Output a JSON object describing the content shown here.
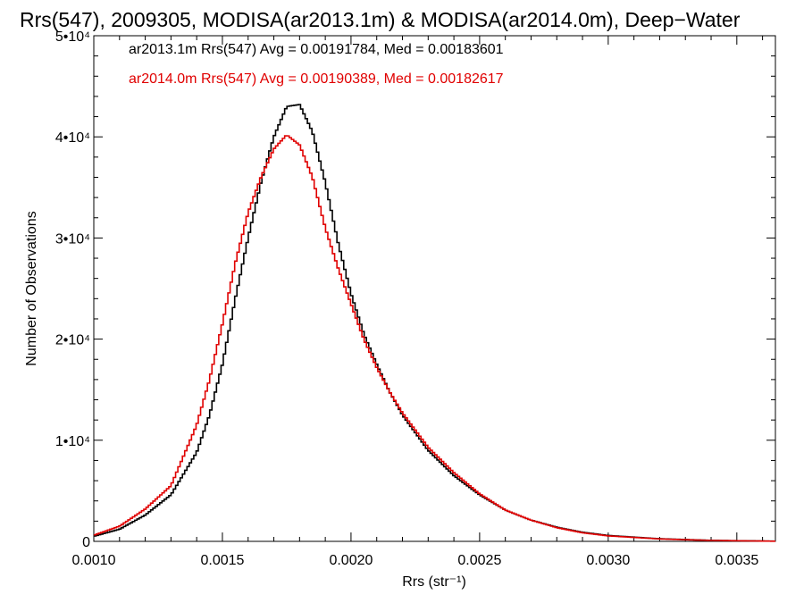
{
  "chart_data": {
    "type": "line",
    "title": "Rrs(547), 2009305, MODISA(ar2013.1m) & MODISA(ar2014.0m), Deep−Water",
    "xlabel": "Rrs (str⁻¹)",
    "ylabel": "Number of Observations",
    "xlim": [
      0.001,
      0.00365
    ],
    "ylim": [
      0,
      50000
    ],
    "x_ticks": [
      "0.0010",
      "0.0015",
      "0.0020",
      "0.0025",
      "0.0030",
      "0.0035"
    ],
    "x_tick_values": [
      0.001,
      0.0015,
      0.002,
      0.0025,
      0.003,
      0.0035
    ],
    "y_ticks": [
      {
        "value": 0,
        "label": "0"
      },
      {
        "value": 10000,
        "label": "1•10⁴"
      },
      {
        "value": 20000,
        "label": "2•10⁴"
      },
      {
        "value": 30000,
        "label": "3•10⁴"
      },
      {
        "value": 40000,
        "label": "4•10⁴"
      },
      {
        "value": 50000,
        "label": "5•10⁴"
      }
    ],
    "grid": false,
    "legend_position": "top-left",
    "series": [
      {
        "name": "ar2013.1m",
        "color": "#000000",
        "annotation": "ar2013.1m Rrs(547) Avg = 0.00191784, Med = 0.00183601",
        "points": [
          [
            0.001,
            500
          ],
          [
            0.0011,
            1200
          ],
          [
            0.0012,
            2600
          ],
          [
            0.0013,
            4600
          ],
          [
            0.0014,
            8800
          ],
          [
            0.00145,
            12500
          ],
          [
            0.0015,
            17500
          ],
          [
            0.00155,
            24000
          ],
          [
            0.0016,
            30000
          ],
          [
            0.00165,
            35500
          ],
          [
            0.0017,
            40000
          ],
          [
            0.00175,
            43000
          ],
          [
            0.0018,
            43200
          ],
          [
            0.00185,
            40500
          ],
          [
            0.0019,
            35500
          ],
          [
            0.00195,
            29500
          ],
          [
            0.002,
            24500
          ],
          [
            0.00205,
            20500
          ],
          [
            0.0021,
            17500
          ],
          [
            0.00215,
            14800
          ],
          [
            0.0022,
            12500
          ],
          [
            0.0023,
            9000
          ],
          [
            0.0024,
            6500
          ],
          [
            0.0025,
            4600
          ],
          [
            0.0026,
            3100
          ],
          [
            0.0027,
            2100
          ],
          [
            0.0028,
            1400
          ],
          [
            0.0029,
            900
          ],
          [
            0.003,
            580
          ],
          [
            0.0032,
            260
          ],
          [
            0.0034,
            100
          ],
          [
            0.00365,
            20
          ]
        ]
      },
      {
        "name": "ar2014.0m",
        "color": "#e00000",
        "annotation": "ar2014.0m Rrs(547) Avg = 0.00190389, Med = 0.00182617",
        "points": [
          [
            0.001,
            600
          ],
          [
            0.0011,
            1500
          ],
          [
            0.0012,
            3200
          ],
          [
            0.0013,
            5500
          ],
          [
            0.0014,
            11500
          ],
          [
            0.00145,
            16000
          ],
          [
            0.0015,
            21500
          ],
          [
            0.00155,
            27500
          ],
          [
            0.0016,
            32500
          ],
          [
            0.00165,
            36000
          ],
          [
            0.0017,
            38800
          ],
          [
            0.00175,
            40200
          ],
          [
            0.0018,
            39200
          ],
          [
            0.00185,
            36000
          ],
          [
            0.0019,
            31000
          ],
          [
            0.00195,
            27000
          ],
          [
            0.002,
            23500
          ],
          [
            0.00205,
            20000
          ],
          [
            0.0021,
            17200
          ],
          [
            0.00215,
            14800
          ],
          [
            0.0022,
            12700
          ],
          [
            0.0023,
            9300
          ],
          [
            0.0024,
            6800
          ],
          [
            0.0025,
            4700
          ],
          [
            0.0026,
            3100
          ],
          [
            0.0027,
            2100
          ],
          [
            0.0028,
            1350
          ],
          [
            0.0029,
            850
          ],
          [
            0.003,
            540
          ],
          [
            0.0032,
            240
          ],
          [
            0.0034,
            90
          ],
          [
            0.00365,
            15
          ]
        ]
      }
    ]
  }
}
